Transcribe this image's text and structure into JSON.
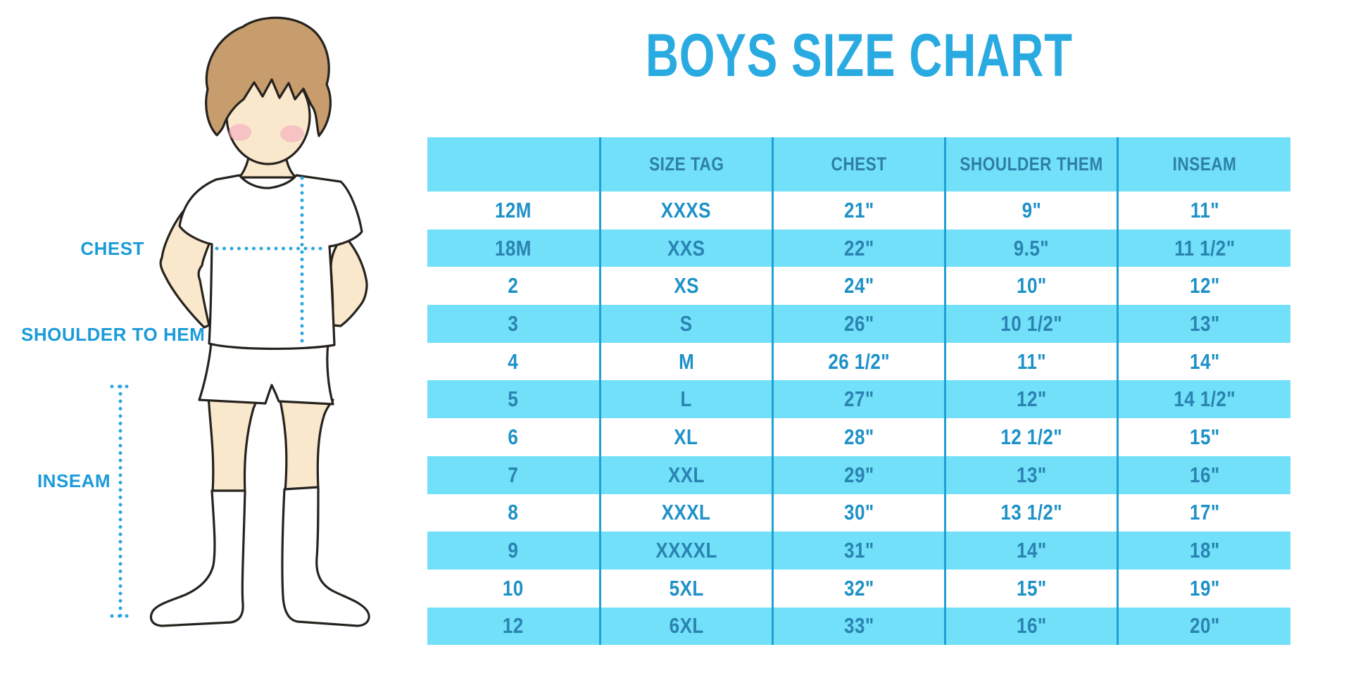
{
  "title": "BOYS SIZE CHART",
  "colors": {
    "accent_blue": "#29ABE2",
    "cyan_bg": "#72E0F8",
    "divider": "#1FA0D6",
    "header_text": "#2E7FA8",
    "row_text_white": "#1D91C8",
    "row_text_cyan": "#2A83B2",
    "label_blue": "#1B9BD9",
    "dot_blue": "#2AA6DF",
    "skin": "#F9E8CB",
    "hair": "#C79D6E",
    "blush": "#F4A9BF",
    "outline": "#26221E"
  },
  "diagram": {
    "labels": {
      "chest": "CHEST",
      "shoulder_to_hem": "SHOULDER TO HEM",
      "inseam": "INSEAM"
    }
  },
  "chart_data": {
    "type": "table",
    "title": "BOYS SIZE CHART",
    "columns": [
      "",
      "SIZE TAG",
      "CHEST",
      "SHOULDER THEM",
      "INSEAM"
    ],
    "rows": [
      [
        "12M",
        "XXXS",
        "21\"",
        "9\"",
        "11\""
      ],
      [
        "18M",
        "XXS",
        "22\"",
        "9.5\"",
        "11 1/2\""
      ],
      [
        "2",
        "XS",
        "24\"",
        "10\"",
        "12\""
      ],
      [
        "3",
        "S",
        "26\"",
        "10 1/2\"",
        "13\""
      ],
      [
        "4",
        "M",
        "26 1/2\"",
        "11\"",
        "14\""
      ],
      [
        "5",
        "L",
        "27\"",
        "12\"",
        "14 1/2\""
      ],
      [
        "6",
        "XL",
        "28\"",
        "12 1/2\"",
        "15\""
      ],
      [
        "7",
        "XXL",
        "29\"",
        "13\"",
        "16\""
      ],
      [
        "8",
        "XXXL",
        "30\"",
        "13 1/2\"",
        "17\""
      ],
      [
        "9",
        "XXXXL",
        "31\"",
        "14\"",
        "18\""
      ],
      [
        "10",
        "5XL",
        "32\"",
        "15\"",
        "19\""
      ],
      [
        "12",
        "6XL",
        "33\"",
        "16\"",
        "20\""
      ]
    ]
  }
}
